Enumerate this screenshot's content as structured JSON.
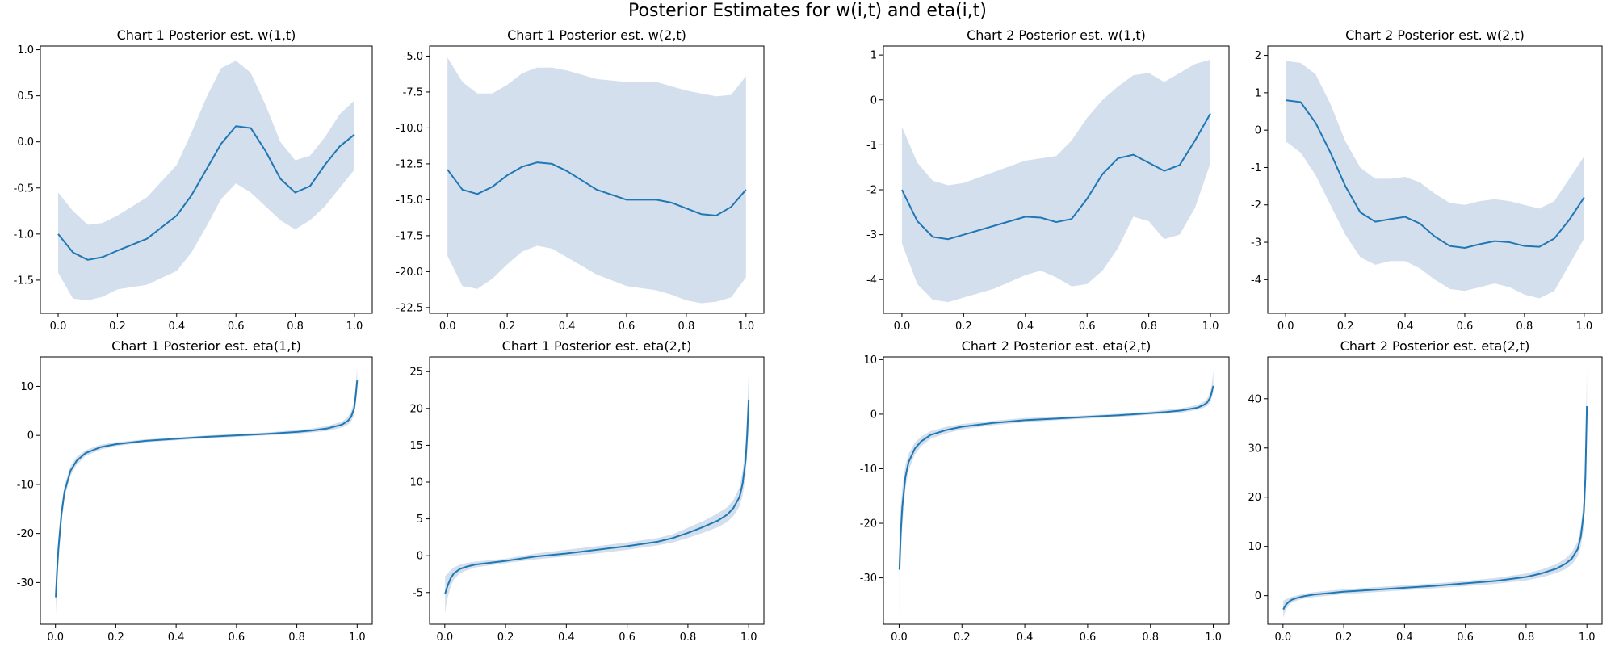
{
  "figure": {
    "title": "Posterior Estimates for w(i,t) and eta(i,t)"
  },
  "colors": {
    "line": "#1f77b4",
    "band": "#b0c4de"
  },
  "chart_data": [
    {
      "type": "area",
      "title": "Chart 1 Posterior est. w(1,t)",
      "xlim": [
        -0.06,
        1.06
      ],
      "ylim": [
        -1.86,
        1.04
      ],
      "xticks": [
        0.0,
        0.2,
        0.4,
        0.6,
        0.8,
        1.0
      ],
      "yticks": [
        -1.5,
        -1.0,
        -0.5,
        0.0,
        0.5,
        1.0
      ],
      "tick_decimals": 1,
      "series": [
        {
          "x": [
            0.0,
            0.05,
            0.1,
            0.15,
            0.2,
            0.3,
            0.4,
            0.45,
            0.5,
            0.55,
            0.6,
            0.65,
            0.7,
            0.75,
            0.8,
            0.85,
            0.9,
            0.95,
            1.0
          ],
          "mean": [
            -1.0,
            -1.2,
            -1.28,
            -1.25,
            -1.18,
            -1.05,
            -0.8,
            -0.58,
            -0.3,
            -0.02,
            0.17,
            0.15,
            -0.1,
            -0.4,
            -0.55,
            -0.48,
            -0.25,
            -0.05,
            0.08
          ],
          "lower": [
            -1.42,
            -1.7,
            -1.72,
            -1.68,
            -1.6,
            -1.55,
            -1.4,
            -1.2,
            -0.92,
            -0.62,
            -0.45,
            -0.55,
            -0.7,
            -0.85,
            -0.95,
            -0.85,
            -0.7,
            -0.5,
            -0.3
          ],
          "upper": [
            -0.55,
            -0.75,
            -0.9,
            -0.88,
            -0.8,
            -0.6,
            -0.25,
            0.1,
            0.48,
            0.8,
            0.88,
            0.75,
            0.4,
            0.0,
            -0.2,
            -0.15,
            0.05,
            0.3,
            0.45
          ]
        }
      ]
    },
    {
      "type": "area",
      "title": "Chart 1 Posterior est. w(2,t)",
      "xlim": [
        -0.06,
        1.06
      ],
      "ylim": [
        -22.9,
        -4.3
      ],
      "xticks": [
        0.0,
        0.2,
        0.4,
        0.6,
        0.8,
        1.0
      ],
      "yticks": [
        -22.5,
        -20.0,
        -17.5,
        -15.0,
        -12.5,
        -10.0,
        -7.5,
        -5.0
      ],
      "tick_decimals": 1,
      "series": [
        {
          "x": [
            0.0,
            0.05,
            0.1,
            0.15,
            0.2,
            0.25,
            0.3,
            0.35,
            0.4,
            0.5,
            0.6,
            0.7,
            0.75,
            0.8,
            0.85,
            0.9,
            0.95,
            1.0
          ],
          "mean": [
            -12.9,
            -14.3,
            -14.6,
            -14.1,
            -13.3,
            -12.7,
            -12.4,
            -12.5,
            -13.0,
            -14.3,
            -15.0,
            -15.0,
            -15.2,
            -15.6,
            -16.0,
            -16.1,
            -15.5,
            -14.3
          ],
          "lower": [
            -18.9,
            -21.0,
            -21.2,
            -20.5,
            -19.5,
            -18.6,
            -18.2,
            -18.4,
            -19.0,
            -20.2,
            -21.0,
            -21.3,
            -21.6,
            -22.0,
            -22.2,
            -22.1,
            -21.8,
            -20.4
          ],
          "upper": [
            -5.1,
            -6.8,
            -7.6,
            -7.6,
            -7.0,
            -6.2,
            -5.8,
            -5.8,
            -6.0,
            -6.6,
            -6.8,
            -6.8,
            -7.1,
            -7.4,
            -7.6,
            -7.8,
            -7.7,
            -6.4
          ]
        }
      ]
    },
    {
      "type": "area",
      "title": "Chart 2 Posterior est. w(1,t)",
      "xlim": [
        -0.06,
        1.06
      ],
      "ylim": [
        -4.75,
        1.2
      ],
      "xticks": [
        0.0,
        0.2,
        0.4,
        0.6,
        0.8,
        1.0
      ],
      "yticks": [
        -4,
        -3,
        -2,
        -1,
        0,
        1
      ],
      "tick_decimals": 0,
      "series": [
        {
          "x": [
            0.0,
            0.05,
            0.1,
            0.15,
            0.2,
            0.3,
            0.4,
            0.45,
            0.5,
            0.55,
            0.6,
            0.65,
            0.7,
            0.75,
            0.8,
            0.85,
            0.9,
            0.95,
            1.0
          ],
          "mean": [
            -2.0,
            -2.7,
            -3.05,
            -3.1,
            -3.0,
            -2.8,
            -2.6,
            -2.62,
            -2.72,
            -2.65,
            -2.2,
            -1.65,
            -1.3,
            -1.22,
            -1.4,
            -1.58,
            -1.45,
            -0.9,
            -0.3
          ],
          "lower": [
            -3.2,
            -4.1,
            -4.45,
            -4.5,
            -4.4,
            -4.2,
            -3.9,
            -3.8,
            -3.95,
            -4.15,
            -4.1,
            -3.8,
            -3.3,
            -2.6,
            -2.7,
            -3.1,
            -3.0,
            -2.4,
            -1.4
          ],
          "upper": [
            -0.6,
            -1.4,
            -1.8,
            -1.9,
            -1.85,
            -1.6,
            -1.35,
            -1.3,
            -1.25,
            -0.9,
            -0.4,
            0.0,
            0.3,
            0.55,
            0.6,
            0.4,
            0.6,
            0.8,
            0.9
          ]
        }
      ]
    },
    {
      "type": "area",
      "title": "Chart 2 Posterior est. w(2,t)",
      "xlim": [
        -0.06,
        1.06
      ],
      "ylim": [
        -4.9,
        2.25
      ],
      "xticks": [
        0.0,
        0.2,
        0.4,
        0.6,
        0.8,
        1.0
      ],
      "yticks": [
        -4,
        -3,
        -2,
        -1,
        0,
        1,
        2
      ],
      "tick_decimals": 0,
      "series": [
        {
          "x": [
            0.0,
            0.05,
            0.1,
            0.15,
            0.2,
            0.25,
            0.3,
            0.35,
            0.4,
            0.45,
            0.5,
            0.55,
            0.6,
            0.65,
            0.7,
            0.75,
            0.8,
            0.85,
            0.9,
            0.95,
            1.0
          ],
          "mean": [
            0.8,
            0.75,
            0.2,
            -0.6,
            -1.5,
            -2.2,
            -2.45,
            -2.38,
            -2.32,
            -2.5,
            -2.85,
            -3.1,
            -3.15,
            -3.05,
            -2.97,
            -3.0,
            -3.1,
            -3.12,
            -2.9,
            -2.4,
            -1.8
          ],
          "lower": [
            -0.3,
            -0.6,
            -1.2,
            -2.0,
            -2.8,
            -3.4,
            -3.6,
            -3.5,
            -3.5,
            -3.7,
            -4.0,
            -4.25,
            -4.3,
            -4.2,
            -4.1,
            -4.2,
            -4.4,
            -4.5,
            -4.3,
            -3.6,
            -2.9
          ],
          "upper": [
            1.85,
            1.8,
            1.5,
            0.7,
            -0.3,
            -1.0,
            -1.3,
            -1.3,
            -1.25,
            -1.4,
            -1.7,
            -1.95,
            -2.0,
            -1.9,
            -1.85,
            -1.9,
            -2.0,
            -2.1,
            -1.9,
            -1.3,
            -0.7
          ]
        }
      ]
    },
    {
      "type": "area",
      "title": "Chart 1 Posterior est. eta(1,t)",
      "xlim": [
        -0.05,
        1.05
      ],
      "ylim": [
        -38.5,
        16
      ],
      "xticks": [
        0.0,
        0.2,
        0.4,
        0.6,
        0.8,
        1.0
      ],
      "yticks": [
        -30,
        -20,
        -10,
        0,
        10
      ],
      "tick_decimals": 0,
      "series": [
        {
          "x": [
            0.001,
            0.005,
            0.01,
            0.02,
            0.03,
            0.05,
            0.07,
            0.1,
            0.15,
            0.2,
            0.3,
            0.4,
            0.5,
            0.6,
            0.7,
            0.8,
            0.85,
            0.9,
            0.95,
            0.97,
            0.98,
            0.99,
            0.995,
            1.0
          ],
          "mean": [
            -33.0,
            -28.0,
            -23.0,
            -16.0,
            -11.5,
            -7.2,
            -5.2,
            -3.6,
            -2.4,
            -1.8,
            -1.1,
            -0.7,
            -0.3,
            0.0,
            0.3,
            0.7,
            1.0,
            1.4,
            2.2,
            3.0,
            3.8,
            5.5,
            8.0,
            11.2
          ],
          "lower": [
            -36.5,
            -31.0,
            -25.5,
            -17.8,
            -12.8,
            -8.2,
            -6.0,
            -4.2,
            -2.9,
            -2.2,
            -1.4,
            -1.0,
            -0.6,
            -0.3,
            0.0,
            0.3,
            0.6,
            0.9,
            1.6,
            2.2,
            2.8,
            4.2,
            6.3,
            9.0
          ],
          "upper": [
            -29.5,
            -25.0,
            -20.5,
            -14.2,
            -10.2,
            -6.2,
            -4.4,
            -3.0,
            -1.9,
            -1.4,
            -0.8,
            -0.4,
            0.0,
            0.3,
            0.6,
            1.1,
            1.4,
            1.9,
            2.8,
            3.8,
            4.9,
            7.0,
            10.2,
            13.8
          ]
        }
      ]
    },
    {
      "type": "area",
      "title": "Chart 1 Posterior est. eta(2,t)",
      "xlim": [
        -0.05,
        1.05
      ],
      "ylim": [
        -9.3,
        27
      ],
      "xticks": [
        0.0,
        0.2,
        0.4,
        0.6,
        0.8,
        1.0
      ],
      "yticks": [
        -5,
        0,
        5,
        10,
        15,
        20,
        25
      ],
      "tick_decimals": 0,
      "series": [
        {
          "x": [
            0.001,
            0.005,
            0.01,
            0.02,
            0.03,
            0.05,
            0.07,
            0.1,
            0.2,
            0.3,
            0.4,
            0.5,
            0.6,
            0.7,
            0.75,
            0.8,
            0.85,
            0.9,
            0.93,
            0.95,
            0.97,
            0.98,
            0.99,
            0.995,
            1.0
          ],
          "mean": [
            -5.2,
            -4.6,
            -4.0,
            -3.0,
            -2.4,
            -1.8,
            -1.5,
            -1.2,
            -0.7,
            -0.1,
            0.3,
            0.8,
            1.3,
            1.9,
            2.4,
            3.1,
            3.9,
            4.8,
            5.6,
            6.5,
            8.0,
            9.8,
            13.0,
            16.5,
            21.2
          ],
          "lower": [
            -7.8,
            -6.6,
            -5.6,
            -4.1,
            -3.2,
            -2.4,
            -2.0,
            -1.6,
            -1.0,
            -0.5,
            -0.1,
            0.3,
            0.8,
            1.4,
            1.8,
            2.4,
            3.1,
            3.9,
            4.6,
            5.4,
            6.7,
            8.2,
            11.0,
            14.0,
            17.5
          ],
          "upper": [
            -2.8,
            -2.6,
            -2.4,
            -1.9,
            -1.6,
            -1.2,
            -1.0,
            -0.8,
            -0.4,
            0.3,
            0.8,
            1.3,
            1.8,
            2.4,
            2.9,
            3.8,
            4.7,
            5.8,
            6.6,
            7.6,
            9.3,
            11.5,
            15.2,
            19.6,
            25.0
          ]
        }
      ]
    },
    {
      "type": "area",
      "title": "Chart 2 Posterior est. eta(2,t)",
      "xlim": [
        -0.05,
        1.05
      ],
      "ylim": [
        -38.5,
        10.5
      ],
      "xticks": [
        0.0,
        0.2,
        0.4,
        0.6,
        0.8,
        1.0
      ],
      "yticks": [
        -30,
        -20,
        -10,
        0,
        10
      ],
      "tick_decimals": 0,
      "series": [
        {
          "x": [
            0.001,
            0.005,
            0.01,
            0.02,
            0.03,
            0.05,
            0.07,
            0.1,
            0.15,
            0.2,
            0.3,
            0.4,
            0.5,
            0.6,
            0.7,
            0.8,
            0.85,
            0.9,
            0.95,
            0.97,
            0.98,
            0.99,
            0.995,
            1.0
          ],
          "mean": [
            -28.5,
            -22.0,
            -17.0,
            -11.5,
            -8.8,
            -6.3,
            -5.0,
            -3.8,
            -2.9,
            -2.3,
            -1.6,
            -1.1,
            -0.8,
            -0.5,
            -0.2,
            0.2,
            0.4,
            0.7,
            1.2,
            1.7,
            2.1,
            3.0,
            4.0,
            5.2
          ],
          "lower": [
            -36.5,
            -27.0,
            -20.5,
            -13.6,
            -10.3,
            -7.4,
            -5.9,
            -4.5,
            -3.5,
            -2.8,
            -2.0,
            -1.5,
            -1.1,
            -0.8,
            -0.5,
            -0.1,
            0.1,
            0.3,
            0.8,
            1.2,
            1.5,
            2.2,
            3.0,
            4.0
          ],
          "upper": [
            -20.5,
            -17.0,
            -13.5,
            -9.4,
            -7.3,
            -5.2,
            -4.1,
            -3.1,
            -2.3,
            -1.8,
            -1.2,
            -0.7,
            -0.5,
            -0.2,
            0.1,
            0.5,
            0.8,
            1.1,
            1.7,
            2.3,
            2.8,
            4.0,
            5.3,
            8.0
          ]
        }
      ]
    },
    {
      "type": "area",
      "title": "Chart 2 Posterior est. eta(2,t)",
      "xlim": [
        -0.05,
        1.05
      ],
      "ylim": [
        -5.8,
        48.5
      ],
      "xticks": [
        0.0,
        0.2,
        0.4,
        0.6,
        0.8,
        1.0
      ],
      "yticks": [
        0,
        10,
        20,
        30,
        40
      ],
      "tick_decimals": 0,
      "series": [
        {
          "x": [
            0.001,
            0.005,
            0.01,
            0.02,
            0.03,
            0.05,
            0.07,
            0.1,
            0.2,
            0.3,
            0.4,
            0.5,
            0.6,
            0.7,
            0.8,
            0.85,
            0.9,
            0.93,
            0.95,
            0.97,
            0.98,
            0.99,
            0.995,
            1.0
          ],
          "mean": [
            -2.8,
            -2.3,
            -1.8,
            -1.2,
            -0.8,
            -0.4,
            -0.1,
            0.2,
            0.8,
            1.2,
            1.6,
            2.0,
            2.5,
            3.0,
            3.8,
            4.5,
            5.5,
            6.5,
            7.5,
            9.5,
            12.0,
            17.0,
            24.0,
            38.5
          ],
          "lower": [
            -4.5,
            -3.6,
            -2.8,
            -1.9,
            -1.4,
            -0.9,
            -0.6,
            -0.3,
            0.3,
            0.7,
            1.1,
            1.5,
            1.9,
            2.4,
            3.1,
            3.7,
            4.6,
            5.4,
            6.3,
            8.0,
            10.0,
            14.0,
            19.5,
            31.0
          ],
          "upper": [
            -1.0,
            -0.9,
            -0.7,
            -0.4,
            -0.2,
            0.1,
            0.4,
            0.7,
            1.3,
            1.7,
            2.1,
            2.5,
            3.0,
            3.6,
            4.5,
            5.3,
            6.4,
            7.6,
            8.8,
            11.0,
            14.0,
            20.0,
            29.0,
            46.0
          ]
        }
      ]
    }
  ]
}
